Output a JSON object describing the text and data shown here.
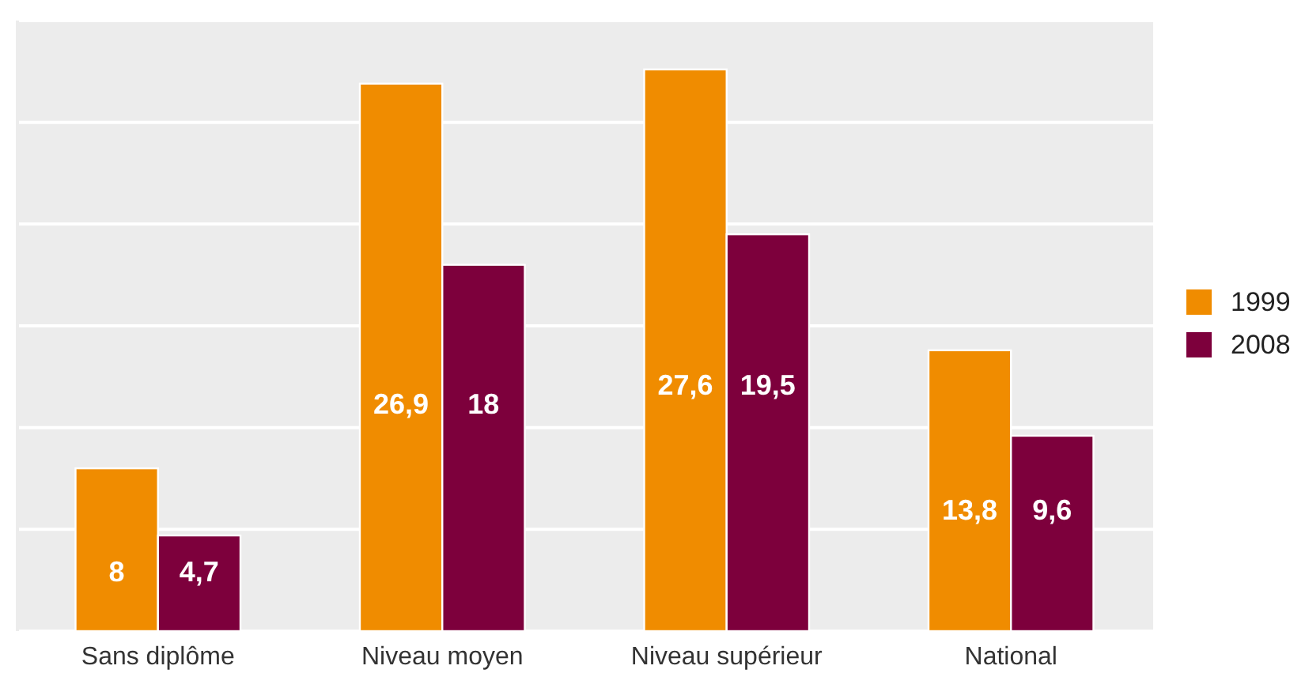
{
  "chart_data": {
    "type": "bar",
    "categories": [
      "Sans diplôme",
      "Niveau moyen",
      "Niveau supérieur",
      "National"
    ],
    "series": [
      {
        "name": "1999",
        "color": "#f08c00",
        "values": [
          8,
          26.9,
          27.6,
          13.8
        ],
        "value_labels": [
          "8",
          "26,9",
          "27,6",
          "13,8"
        ]
      },
      {
        "name": "2008",
        "color": "#7d003c",
        "values": [
          4.7,
          18,
          19.5,
          9.6
        ],
        "value_labels": [
          "4,7",
          "18",
          "19,5",
          "9,6"
        ]
      }
    ],
    "ylim": [
      0,
      30
    ],
    "yticks": [
      0,
      5,
      10,
      15,
      20,
      25,
      30
    ],
    "grid": "y",
    "tick_labels": "x",
    "legend": "right"
  }
}
